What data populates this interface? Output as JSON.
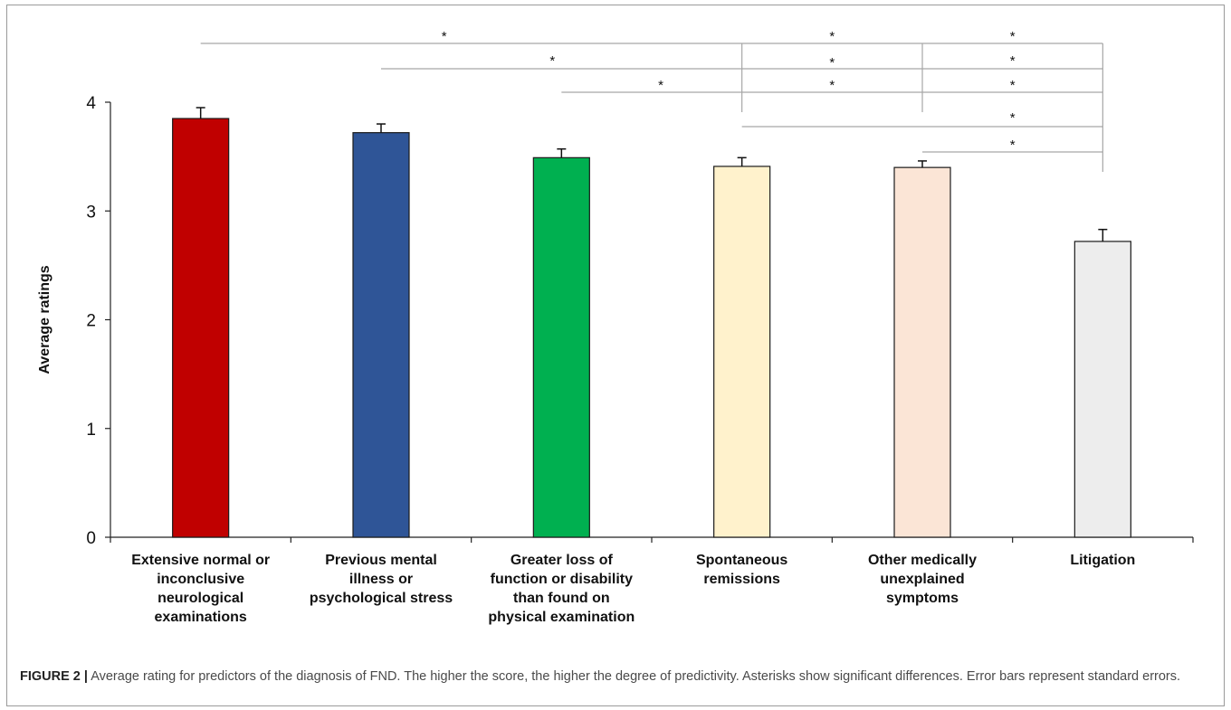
{
  "caption": {
    "label": "FIGURE 2 |",
    "text": " Average rating for predictors of the diagnosis of FND. The higher the score, the higher the degree of predictivity. Asterisks show significant differences. Error bars represent standard errors."
  },
  "chart_data": {
    "type": "bar",
    "title": "",
    "xlabel": "",
    "ylabel": "Average ratings",
    "ylim": [
      0,
      4
    ],
    "yticks": [
      "0",
      "1",
      "2",
      "3",
      "4"
    ],
    "grid": false,
    "legend": "none",
    "categories": [
      [
        "Extensive normal or",
        "inconclusive",
        "neurological",
        "examinations"
      ],
      [
        "Previous mental",
        "illness or",
        "psychological stress"
      ],
      [
        "Greater loss of",
        "function or disability",
        "than found on",
        "physical examination"
      ],
      [
        "Spontaneous",
        "remissions"
      ],
      [
        "Other medically",
        "unexplained",
        "symptoms"
      ],
      [
        "Litigation"
      ]
    ],
    "values": [
      3.85,
      3.72,
      3.49,
      3.41,
      3.4,
      2.72
    ],
    "errors": [
      0.1,
      0.08,
      0.08,
      0.08,
      0.06,
      0.11
    ],
    "colors": [
      "#c00000",
      "#2f5597",
      "#00b050",
      "#fff2cc",
      "#fbe5d6",
      "#ededed"
    ],
    "significance": [
      {
        "from": 0,
        "to": 5,
        "marker": "*"
      },
      {
        "from": 1,
        "to": 5,
        "marker": "*"
      },
      {
        "from": 2,
        "to": 5,
        "marker": "*"
      },
      {
        "from": 3,
        "to": 5,
        "marker": "*"
      },
      {
        "from": 4,
        "to": 5,
        "marker": "*"
      }
    ]
  }
}
